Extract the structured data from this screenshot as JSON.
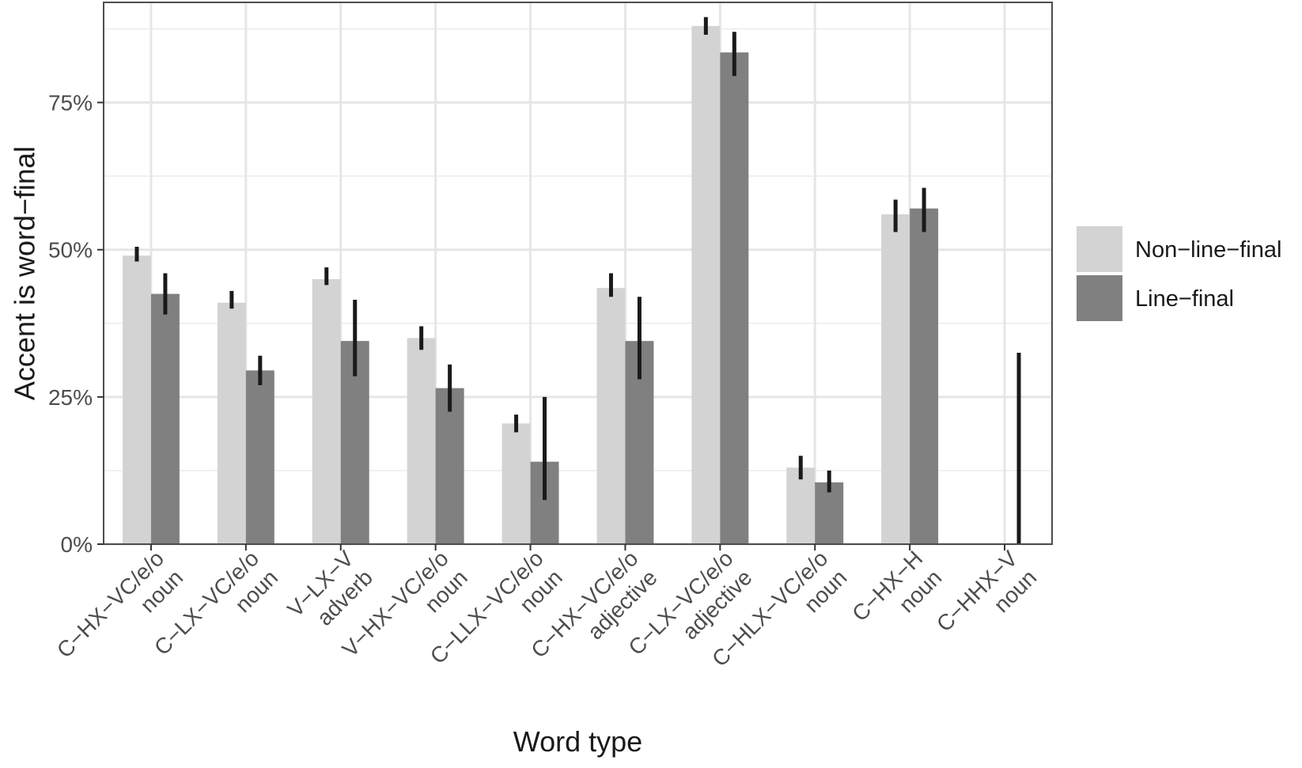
{
  "chart_data": {
    "type": "bar",
    "title": "",
    "xlabel": "Word type",
    "ylabel": "Accent is word−final",
    "ylim": [
      0,
      0.92
    ],
    "yticks": [
      {
        "value": 0,
        "label": "0%"
      },
      {
        "value": 0.25,
        "label": "25%"
      },
      {
        "value": 0.5,
        "label": "50%"
      },
      {
        "value": 0.75,
        "label": "75%"
      }
    ],
    "grid": true,
    "legend_position": "right",
    "categories": [
      {
        "line1": "C−HX−VC/e/o",
        "line2": "noun"
      },
      {
        "line1": "C−LX−VC/e/o",
        "line2": "noun"
      },
      {
        "line1": "V−LX−V",
        "line2": "adverb"
      },
      {
        "line1": "V−HX−VC/e/o",
        "line2": "noun"
      },
      {
        "line1": "C−LLX−VC/e/o",
        "line2": "noun"
      },
      {
        "line1": "C−HX−VC/e/o",
        "line2": "adjective"
      },
      {
        "line1": "C−LX−VC/e/o",
        "line2": "adjective"
      },
      {
        "line1": "C−HLX−VC/e/o",
        "line2": "noun"
      },
      {
        "line1": "C−HX−H",
        "line2": "noun"
      },
      {
        "line1": "C−HHX−V",
        "line2": "noun"
      }
    ],
    "series": [
      {
        "name": "Non−line−final",
        "color": "#d3d3d3",
        "values": [
          0.49,
          0.41,
          0.45,
          0.35,
          0.205,
          0.435,
          0.88,
          0.13,
          0.56,
          0.0
        ],
        "error_low": [
          0.48,
          0.4,
          0.44,
          0.33,
          0.19,
          0.42,
          0.865,
          0.11,
          0.53,
          0.0
        ],
        "error_high": [
          0.505,
          0.43,
          0.47,
          0.37,
          0.22,
          0.46,
          0.895,
          0.15,
          0.585,
          0.0
        ]
      },
      {
        "name": "Line−final",
        "color": "#808080",
        "values": [
          0.425,
          0.295,
          0.345,
          0.265,
          0.14,
          0.345,
          0.835,
          0.105,
          0.57,
          0.0
        ],
        "error_low": [
          0.39,
          0.27,
          0.285,
          0.225,
          0.075,
          0.28,
          0.795,
          0.088,
          0.53,
          0.0
        ],
        "error_high": [
          0.46,
          0.32,
          0.415,
          0.305,
          0.25,
          0.42,
          0.87,
          0.125,
          0.605,
          0.325
        ]
      }
    ],
    "error_bar_color": "#1a1a1a"
  }
}
